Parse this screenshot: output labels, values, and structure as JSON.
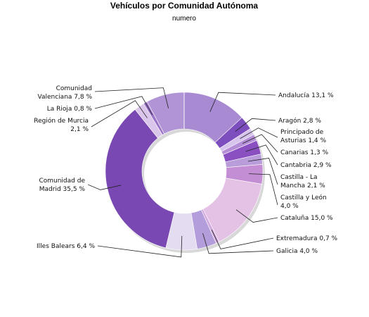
{
  "chart_data": {
    "type": "pie",
    "donut": true,
    "title": "Vehículos por Comunidad Autónoma",
    "subtitle": "numero",
    "unit": "%",
    "slices": [
      {
        "label": "Andalucía",
        "value": 13.1,
        "text": "Andalucía 13,1 %",
        "color": "#a78ad2"
      },
      {
        "label": "Aragón",
        "value": 2.8,
        "text": "Aragón 2,8 %",
        "color": "#7d4ebd"
      },
      {
        "label": "Principado de Asturias",
        "value": 1.4,
        "text": "Principado de|Asturias 1,4 %",
        "color": "#d7c4ec"
      },
      {
        "label": "Canarias",
        "value": 1.3,
        "text": "Canarias 1,3 %",
        "color": "#b48ed6"
      },
      {
        "label": "Cantabria",
        "value": 2.9,
        "text": "Cantabria 2,9 %",
        "color": "#8a50c2"
      },
      {
        "label": "Castilla - La Mancha",
        "value": 2.1,
        "text": "Castilla - La|Mancha 2,1 %",
        "color": "#b99ddb"
      },
      {
        "label": "Castilla y León",
        "value": 4.0,
        "text": "Castilla y León|4,0 %",
        "color": "#c48ed4"
      },
      {
        "label": "Cataluña",
        "value": 15.0,
        "text": "Cataluña 15,0 %",
        "color": "#e4c2e6"
      },
      {
        "label": "Extremadura",
        "value": 0.7,
        "text": "Extremadura 0,7 %",
        "color": "#d1a9de"
      },
      {
        "label": "Galicia",
        "value": 4.0,
        "text": "Galicia 4,0 %",
        "color": "#b49ddb"
      },
      {
        "label": "Illes Balears",
        "value": 6.4,
        "text": "Illes Balears 6,4 %",
        "color": "#e4dcf1"
      },
      {
        "label": "Comunidad de Madrid",
        "value": 35.5,
        "text": "Comunidad de|Madrid 35,5 %",
        "color": "#7a48b3"
      },
      {
        "label": "Región de Murcia",
        "value": 2.1,
        "text": "Región de Murcia|2,1 %",
        "color": "#d9c6ea"
      },
      {
        "label": "La Rioja",
        "value": 0.8,
        "text": "La Rioja 0,8 %",
        "color": "#9a72c8"
      },
      {
        "label": "Comunidad Valenciana",
        "value": 7.8,
        "text": "Comunidad|Valenciana 7,8 %",
        "color": "#b194d6"
      }
    ]
  }
}
